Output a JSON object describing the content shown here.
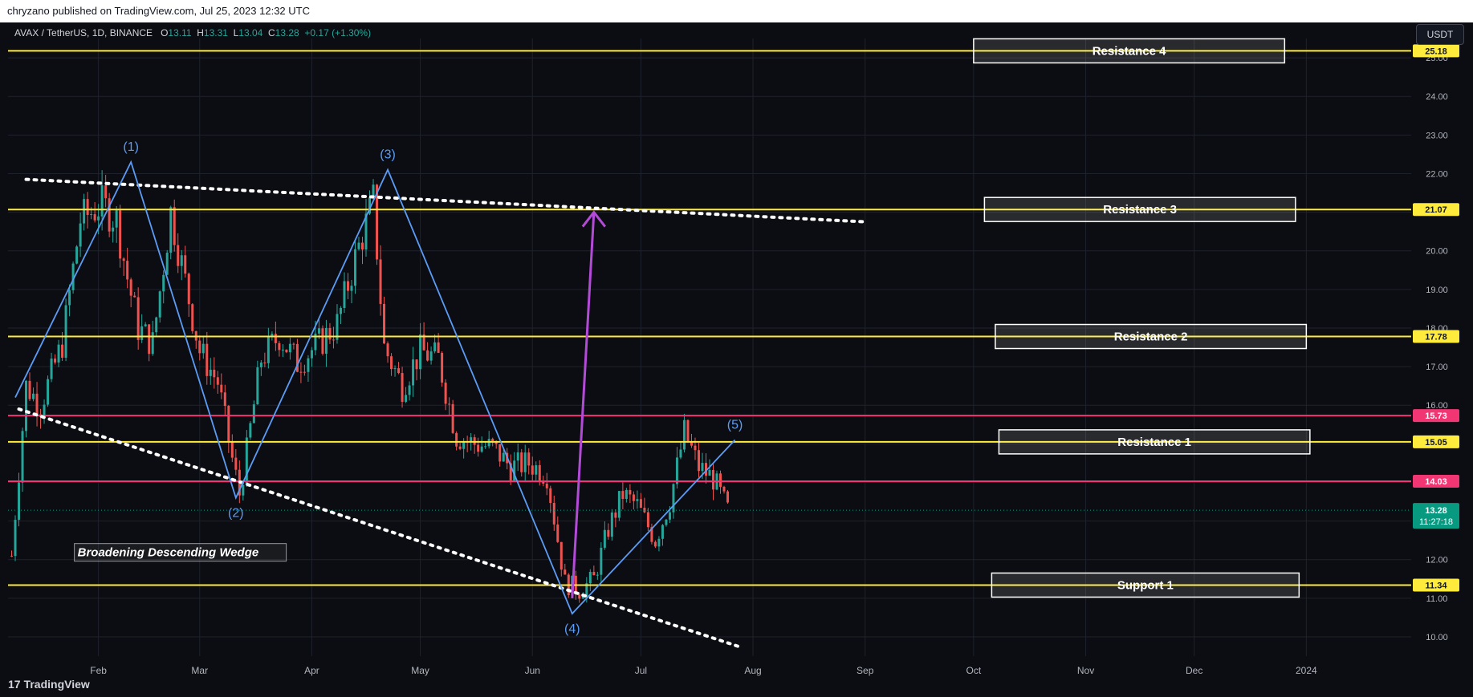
{
  "header": {
    "published_by": "chryzano published on TradingView.com, Jul 25, 2023 12:32 UTC"
  },
  "legend": {
    "symbol": "AVAX / TetherUS, 1D, BINANCE",
    "o_label": "O",
    "o": "13.11",
    "h_label": "H",
    "h": "13.31",
    "l_label": "L",
    "l": "13.04",
    "c_label": "C",
    "c": "13.28",
    "change": "+0.17 (+1.30%)"
  },
  "unit_badge": "USDT",
  "brand": {
    "logo": "17",
    "name": "TradingView"
  },
  "chart_data": {
    "type": "candlestick",
    "x_domain": [
      "2023-01-07",
      "2024-01-30"
    ],
    "ylim": [
      9.5,
      25.5
    ],
    "x_ticks": [
      {
        "label": "Feb",
        "date": "2023-02-01"
      },
      {
        "label": "Mar",
        "date": "2023-03-01"
      },
      {
        "label": "Apr",
        "date": "2023-04-01"
      },
      {
        "label": "May",
        "date": "2023-05-01"
      },
      {
        "label": "Jun",
        "date": "2023-06-01"
      },
      {
        "label": "Jul",
        "date": "2023-07-01"
      },
      {
        "label": "Aug",
        "date": "2023-08-01"
      },
      {
        "label": "Sep",
        "date": "2023-09-01"
      },
      {
        "label": "Oct",
        "date": "2023-10-01"
      },
      {
        "label": "Nov",
        "date": "2023-11-01"
      },
      {
        "label": "Dec",
        "date": "2023-12-01"
      },
      {
        "label": "2024",
        "date": "2024-01-01"
      }
    ],
    "y_ticks": [
      "10.00",
      "11.00",
      "12.00",
      "13.00",
      "14.00",
      "15.00",
      "16.00",
      "17.00",
      "18.00",
      "19.00",
      "20.00",
      "21.00",
      "22.00",
      "23.00",
      "24.00",
      "25.00"
    ],
    "close_path": [
      [
        "2023-01-08",
        12.1
      ],
      [
        "2023-01-12",
        16.5
      ],
      [
        "2023-01-16",
        16.0
      ],
      [
        "2023-01-22",
        17.6
      ],
      [
        "2023-01-27",
        20.8
      ],
      [
        "2023-02-02",
        21.2
      ],
      [
        "2023-02-06",
        20.8
      ],
      [
        "2023-02-09",
        19.3
      ],
      [
        "2023-02-12",
        18.0
      ],
      [
        "2023-02-16",
        17.6
      ],
      [
        "2023-02-21",
        21.0
      ],
      [
        "2023-02-25",
        19.2
      ],
      [
        "2023-03-01",
        17.4
      ],
      [
        "2023-03-06",
        16.6
      ],
      [
        "2023-03-10",
        14.6
      ],
      [
        "2023-03-12",
        13.7
      ],
      [
        "2023-03-14",
        14.8
      ],
      [
        "2023-03-18",
        17.2
      ],
      [
        "2023-03-23",
        17.8
      ],
      [
        "2023-03-28",
        17.1
      ],
      [
        "2023-04-03",
        17.6
      ],
      [
        "2023-04-08",
        18.1
      ],
      [
        "2023-04-13",
        19.8
      ],
      [
        "2023-04-18",
        21.3
      ],
      [
        "2023-04-21",
        17.5
      ],
      [
        "2023-04-26",
        16.5
      ],
      [
        "2023-05-01",
        17.4
      ],
      [
        "2023-05-06",
        17.2
      ],
      [
        "2023-05-11",
        15.2
      ],
      [
        "2023-05-16",
        15.0
      ],
      [
        "2023-05-21",
        14.9
      ],
      [
        "2023-05-26",
        14.4
      ],
      [
        "2023-05-31",
        14.5
      ],
      [
        "2023-06-05",
        14.2
      ],
      [
        "2023-06-10",
        11.4
      ],
      [
        "2023-06-14",
        11.2
      ],
      [
        "2023-06-18",
        11.5
      ],
      [
        "2023-06-22",
        12.8
      ],
      [
        "2023-06-26",
        13.7
      ],
      [
        "2023-06-30",
        13.4
      ],
      [
        "2023-07-05",
        12.5
      ],
      [
        "2023-07-09",
        13.5
      ],
      [
        "2023-07-13",
        15.3
      ],
      [
        "2023-07-17",
        14.4
      ],
      [
        "2023-07-21",
        14.1
      ],
      [
        "2023-07-25",
        13.28
      ]
    ],
    "price_levels": [
      {
        "price": 25.18,
        "label": "25.18",
        "color": "#ffeb3b"
      },
      {
        "price": 21.07,
        "label": "21.07",
        "color": "#ffeb3b"
      },
      {
        "price": 17.78,
        "label": "17.78",
        "color": "#ffeb3b"
      },
      {
        "price": 15.73,
        "label": "15.73",
        "color": "#f23673"
      },
      {
        "price": 15.05,
        "label": "15.05",
        "color": "#ffeb3b"
      },
      {
        "price": 14.03,
        "label": "14.03",
        "color": "#f23673"
      },
      {
        "price": 11.34,
        "label": "11.34",
        "color": "#ffeb3b"
      }
    ],
    "current_price": {
      "label": "13.28",
      "countdown": "11:27:18",
      "color": "#089981"
    },
    "zones": [
      {
        "label": "Resistance 4",
        "price": 25.18,
        "start": "2023-10-01",
        "end": "2023-12-26"
      },
      {
        "label": "Resistance 3",
        "price": 21.07,
        "start": "2023-10-04",
        "end": "2023-12-29"
      },
      {
        "label": "Resistance 2",
        "price": 17.78,
        "start": "2023-10-07",
        "end": "2024-01-01"
      },
      {
        "label": "Resistance 1",
        "price": 15.05,
        "start": "2023-10-08",
        "end": "2024-01-02"
      },
      {
        "label": "Support 1",
        "price": 11.34,
        "start": "2023-10-06",
        "end": "2023-12-30"
      }
    ],
    "wave_points": [
      {
        "label": "",
        "date": "2023-01-09",
        "price": 16.2
      },
      {
        "label": "(1)",
        "date": "2023-02-10",
        "price": 22.3
      },
      {
        "label": "(2)",
        "date": "2023-03-11",
        "price": 13.6
      },
      {
        "label": "(3)",
        "date": "2023-04-22",
        "price": 22.1
      },
      {
        "label": "(4)",
        "date": "2023-06-12",
        "price": 10.6
      },
      {
        "label": "(5)",
        "date": "2023-07-27",
        "price": 15.1
      }
    ],
    "wedge_upper": [
      [
        "2023-01-12",
        21.85
      ],
      [
        "2023-09-01",
        20.75
      ]
    ],
    "wedge_lower": [
      [
        "2023-01-10",
        15.9
      ],
      [
        "2023-07-28",
        9.75
      ]
    ],
    "target_arrow": {
      "from": [
        "2023-06-12",
        11.0
      ],
      "to": [
        "2023-06-18",
        21.0
      ]
    },
    "pattern_label": "Broadening Descending Wedge",
    "colors": {
      "up": "#26a69a",
      "down": "#ef5350",
      "wave": "#5b9cf6",
      "arrow": "#b44ad8",
      "dots": "#ffffff"
    }
  }
}
